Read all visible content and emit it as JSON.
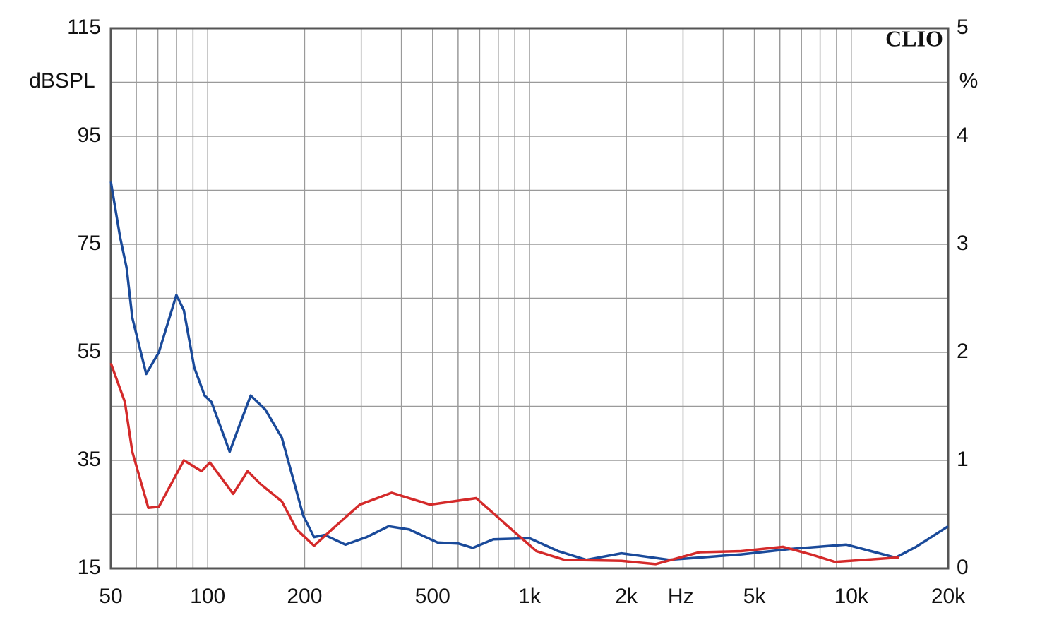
{
  "chart_data": {
    "type": "line",
    "brand": "CLIO",
    "y_label": "dBSPL",
    "y2_label": "%",
    "x_label": "Hz",
    "log_x": true,
    "grid": true,
    "xlim": [
      50,
      20000
    ],
    "xticks": [
      50,
      100,
      200,
      500,
      {
        "value": 1000,
        "label": "1k"
      },
      {
        "value": 2000,
        "label": "2k"
      },
      {
        "value": 5000,
        "label": "5k"
      },
      {
        "value": 10000,
        "label": "10k"
      },
      {
        "value": 20000,
        "label": "20k"
      }
    ],
    "x_label_at": 3800,
    "xminor": [
      60,
      70,
      80,
      90,
      300,
      400,
      600,
      700,
      800,
      900,
      3000,
      4000,
      6000,
      7000,
      8000,
      9000
    ],
    "ylim": [
      15,
      115
    ],
    "yticks": [
      15,
      35,
      55,
      75,
      95,
      115
    ],
    "yminor": [
      25,
      45,
      65,
      85,
      105
    ],
    "y2lim": [
      0,
      5
    ],
    "y2ticks": [
      0,
      1,
      2,
      3,
      4,
      5
    ],
    "series": [
      {
        "color": "#1a4a9a",
        "axis": "y2",
        "x": [
          50,
          53.4,
          56,
          58.3,
          64.4,
          70.5,
          79.9,
          84.3,
          90.8,
          97.8,
          102.7,
          117,
          126,
          136,
          151,
          170,
          198,
          214,
          231,
          268,
          312,
          365,
          423,
          518,
          602,
          667,
          772,
          1000,
          1228,
          1501,
          1930,
          2719,
          4550,
          6440,
          9660,
          11850,
          13730,
          15900,
          20000
        ],
        "values": [
          3.58,
          3.07,
          2.78,
          2.32,
          1.8,
          2.0,
          2.53,
          2.39,
          1.86,
          1.6,
          1.54,
          1.08,
          1.34,
          1.6,
          1.47,
          1.21,
          0.49,
          0.29,
          0.31,
          0.22,
          0.29,
          0.39,
          0.36,
          0.24,
          0.23,
          0.19,
          0.27,
          0.28,
          0.16,
          0.08,
          0.14,
          0.08,
          0.13,
          0.18,
          0.22,
          0.15,
          0.1,
          0.2,
          0.39
        ]
      },
      {
        "color": "#d42a2a",
        "axis": "y2",
        "x": [
          50,
          55.3,
          58.3,
          65.4,
          70.5,
          84.3,
          95.6,
          101.6,
          120,
          133,
          146,
          170,
          189,
          214,
          243,
          297,
          373,
          491,
          683,
          857,
          1050,
          1284,
          1930,
          2465,
          3374,
          4550,
          6140,
          7480,
          8910,
          13730,
          14060
        ],
        "values": [
          1.9,
          1.54,
          1.08,
          0.56,
          0.57,
          1.0,
          0.9,
          0.98,
          0.69,
          0.9,
          0.78,
          0.62,
          0.36,
          0.21,
          0.36,
          0.59,
          0.7,
          0.59,
          0.65,
          0.39,
          0.16,
          0.08,
          0.07,
          0.04,
          0.15,
          0.16,
          0.2,
          0.13,
          0.06,
          0.1,
          0.1
        ]
      }
    ]
  }
}
